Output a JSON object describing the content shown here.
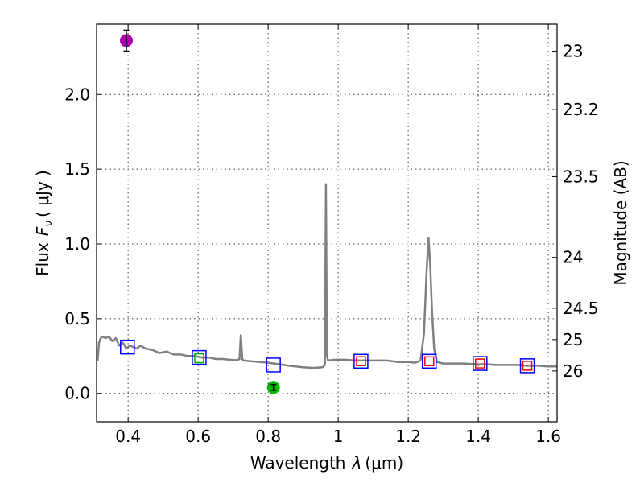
{
  "chart_data": {
    "type": "scatter",
    "title": "",
    "xlabel": "Wavelength",
    "xlabel_symbol": "λ",
    "xlabel_unit": "(μm)",
    "ylabel": "Flux",
    "ylabel_symbol": "F",
    "ylabel_subscript": "ν",
    "ylabel_unit": "( μJy )",
    "y2label": "Magnitude (AB)",
    "xlim": [
      0.31,
      1.625
    ],
    "ylim": [
      -0.19,
      2.47
    ],
    "xticks": [
      0.4,
      0.6,
      0.8,
      1.0,
      1.2,
      1.4,
      1.6
    ],
    "xtick_labels": [
      "0.4",
      "0.6",
      "0.8",
      "1",
      "1.2",
      "1.4",
      "1.6"
    ],
    "yticks": [
      0.0,
      0.5,
      1.0,
      1.5,
      2.0
    ],
    "ytick_labels": [
      "0.0",
      "0.5",
      "1.0",
      "1.5",
      "2.0"
    ],
    "y2ticks": [
      {
        "label": "23",
        "flux": 2.29
      },
      {
        "label": "23.2",
        "flux": 1.9
      },
      {
        "label": "23.5",
        "flux": 1.45
      },
      {
        "label": "24",
        "flux": 0.91
      },
      {
        "label": "24.5",
        "flux": 0.57
      },
      {
        "label": "25",
        "flux": 0.36
      },
      {
        "label": "26",
        "flux": 0.15
      }
    ],
    "grid": true,
    "series": [
      {
        "name": "model spectrum",
        "kind": "line",
        "color": "#808080",
        "x": [
          0.313,
          0.317,
          0.322,
          0.328,
          0.335,
          0.345,
          0.355,
          0.365,
          0.375,
          0.385,
          0.395,
          0.405,
          0.415,
          0.425,
          0.435,
          0.45,
          0.47,
          0.49,
          0.51,
          0.53,
          0.55,
          0.57,
          0.59,
          0.61,
          0.63,
          0.65,
          0.67,
          0.69,
          0.71,
          0.718,
          0.722,
          0.726,
          0.73,
          0.75,
          0.78,
          0.8,
          0.83,
          0.86,
          0.9,
          0.93,
          0.955,
          0.962,
          0.965,
          0.968,
          0.971,
          0.99,
          1.02,
          1.05,
          1.08,
          1.11,
          1.14,
          1.17,
          1.2,
          1.22,
          1.235,
          1.245,
          1.252,
          1.258,
          1.263,
          1.268,
          1.274,
          1.282,
          1.3,
          1.33,
          1.36,
          1.39,
          1.42,
          1.45,
          1.48,
          1.51,
          1.54,
          1.57,
          1.6,
          1.625
        ],
        "y": [
          0.22,
          0.34,
          0.37,
          0.38,
          0.37,
          0.38,
          0.35,
          0.37,
          0.32,
          0.34,
          0.3,
          0.32,
          0.31,
          0.3,
          0.32,
          0.3,
          0.29,
          0.27,
          0.28,
          0.26,
          0.26,
          0.25,
          0.25,
          0.24,
          0.24,
          0.23,
          0.23,
          0.225,
          0.222,
          0.23,
          0.39,
          0.23,
          0.22,
          0.215,
          0.21,
          0.205,
          0.195,
          0.185,
          0.175,
          0.17,
          0.175,
          0.19,
          1.4,
          0.25,
          0.22,
          0.225,
          0.225,
          0.22,
          0.22,
          0.22,
          0.22,
          0.21,
          0.21,
          0.205,
          0.22,
          0.4,
          0.8,
          1.04,
          0.85,
          0.55,
          0.3,
          0.21,
          0.2,
          0.2,
          0.2,
          0.195,
          0.195,
          0.19,
          0.19,
          0.19,
          0.185,
          0.185,
          0.18,
          0.18
        ]
      },
      {
        "name": "blue model boxes",
        "kind": "square",
        "color": "#0000ff",
        "x": [
          0.398,
          0.603,
          0.815,
          1.065,
          1.26,
          1.405,
          1.54
        ],
        "y": [
          0.31,
          0.24,
          0.19,
          0.215,
          0.215,
          0.2,
          0.185
        ]
      },
      {
        "name": "green boxes",
        "kind": "square-small",
        "color": "#00aa00",
        "x": [
          0.603
        ],
        "y": [
          0.235
        ]
      },
      {
        "name": "red boxes",
        "kind": "square-small",
        "color": "#ff0000",
        "x": [
          1.065,
          1.26,
          1.405,
          1.54
        ],
        "y": [
          0.215,
          0.215,
          0.2,
          0.185
        ]
      },
      {
        "name": "magenta photometry",
        "kind": "point",
        "color": "#aa00aa",
        "x": [
          0.395
        ],
        "y": [
          2.36
        ],
        "yerr": [
          0.07
        ]
      },
      {
        "name": "green photometry",
        "kind": "point",
        "color": "#00bb00",
        "x": [
          0.815
        ],
        "y": [
          0.04
        ],
        "yerr": [
          0.02
        ]
      }
    ]
  }
}
